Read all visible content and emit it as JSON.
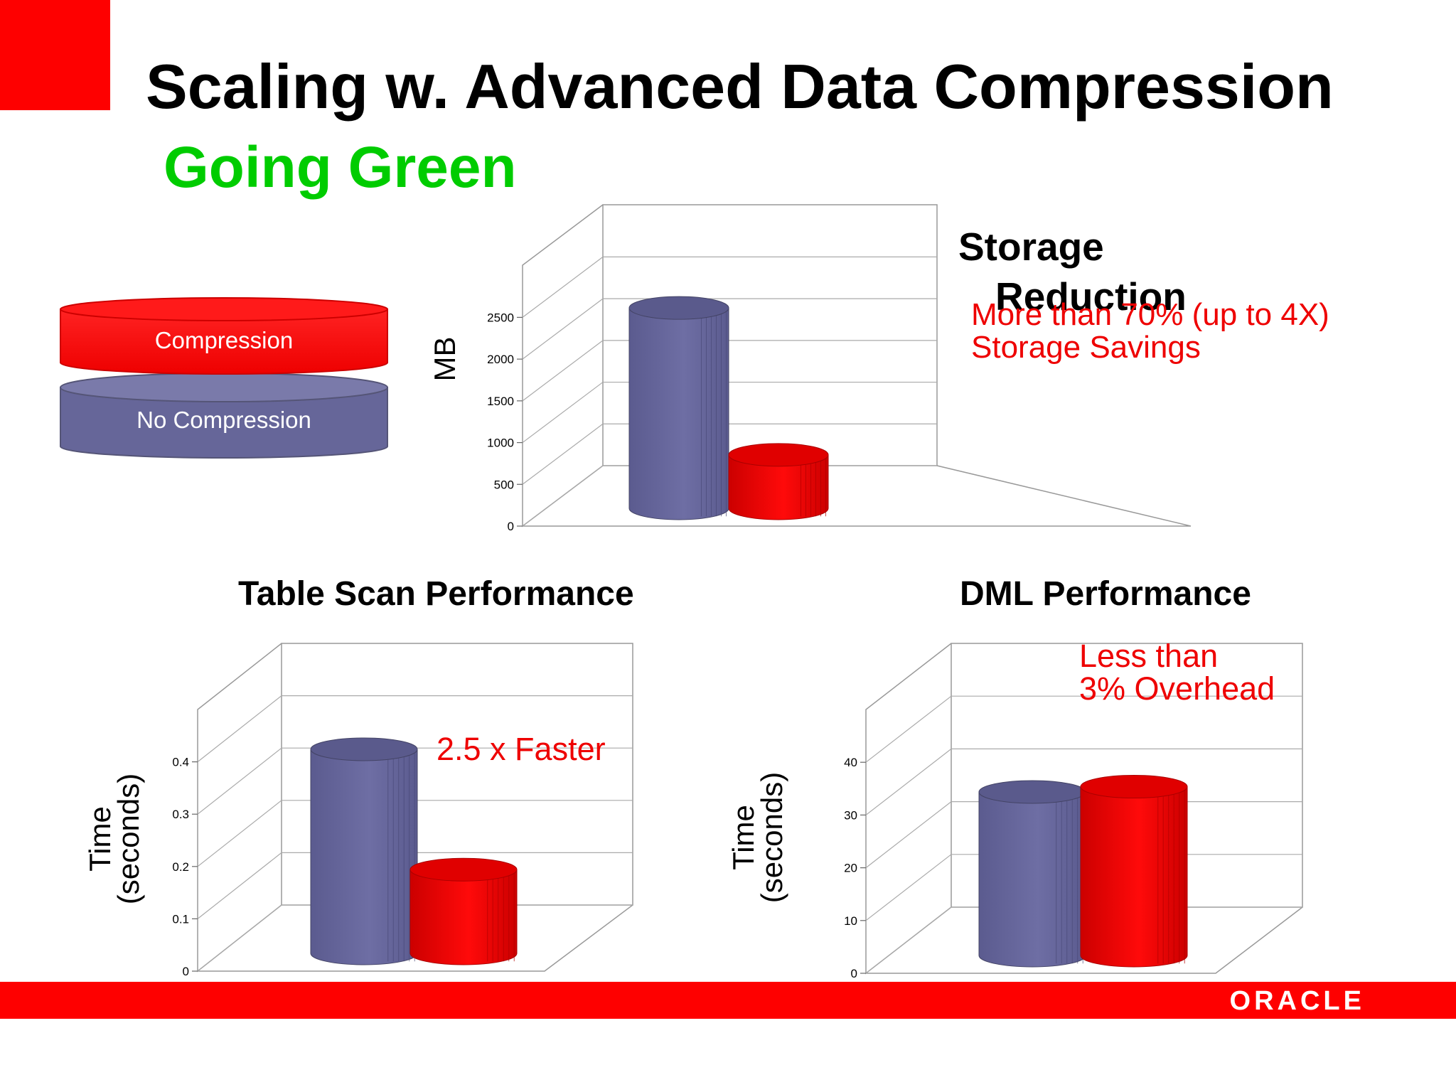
{
  "slide": {
    "title": "Scaling w. Advanced Data Compression",
    "subtitle": "Going Green",
    "logo": "ORACLE",
    "colors": {
      "accent": "#fe0000",
      "green": "#00cc00",
      "no_compression": "#666699",
      "compression": "#ee0000"
    }
  },
  "legend": {
    "items": [
      {
        "label": "Compression",
        "color": "#ee0000"
      },
      {
        "label": "No Compression",
        "color": "#666699"
      }
    ]
  },
  "storage": {
    "heading_line1": "Storage",
    "heading_line2": "Reduction",
    "note_line1": "More than 70% (up to 4X)",
    "note_line2": "Storage Savings"
  },
  "table_scan": {
    "title": "Table Scan Performance",
    "note": "2.5 x Faster"
  },
  "dml": {
    "title": "DML Performance",
    "note_line1": "Less than",
    "note_line2": "3% Overhead"
  },
  "chart_data": [
    {
      "id": "storage",
      "type": "bar",
      "ylabel": "MB",
      "ylim": [
        0,
        2500
      ],
      "yticks": [
        0,
        500,
        1000,
        1500,
        2000,
        2500
      ],
      "series": [
        {
          "name": "No Compression",
          "values": [
            2400
          ]
        },
        {
          "name": "Compression",
          "values": [
            640
          ]
        }
      ]
    },
    {
      "id": "table_scan",
      "type": "bar",
      "title": "Table Scan Performance",
      "ylabel": "Time (seconds)",
      "ylim": [
        0,
        0.4
      ],
      "yticks": [
        0,
        0.1,
        0.2,
        0.3,
        0.4
      ],
      "series": [
        {
          "name": "No Compression",
          "values": [
            0.39
          ]
        },
        {
          "name": "Compression",
          "values": [
            0.16
          ]
        }
      ]
    },
    {
      "id": "dml",
      "type": "bar",
      "title": "DML Performance",
      "ylabel": "Time (seconds)",
      "ylim": [
        0,
        40
      ],
      "yticks": [
        0,
        10,
        20,
        30,
        40
      ],
      "series": [
        {
          "name": "No Compression",
          "values": [
            31
          ]
        },
        {
          "name": "Compression",
          "values": [
            32
          ]
        }
      ]
    }
  ]
}
